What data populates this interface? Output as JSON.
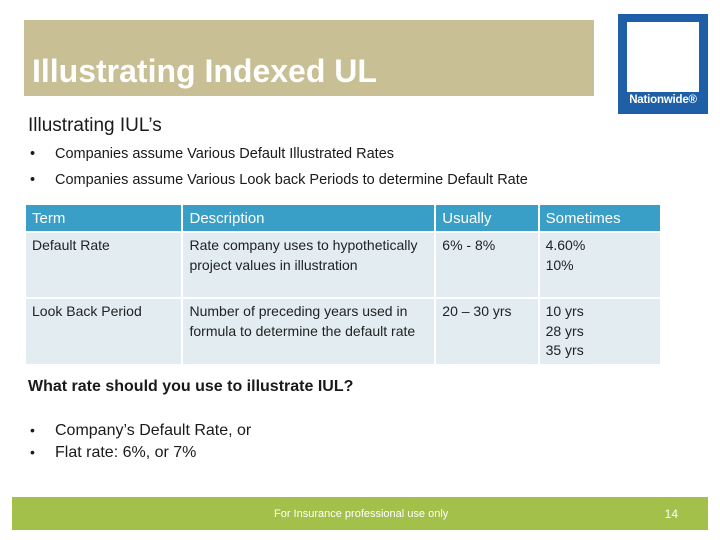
{
  "slide": {
    "title": "Illustrating Indexed UL",
    "logo_text": "Nationwide®",
    "subtitle": "Illustrating IUL’s",
    "bullets": [
      "Companies assume Various Default Illustrated Rates",
      "Companies assume Various Look back Periods to determine Default Rate"
    ],
    "bullet_symbol": "•",
    "table": {
      "headers": [
        "Term",
        "Description",
        "Usually",
        "Sometimes"
      ],
      "rows": [
        {
          "term": "Default Rate",
          "description": "Rate company uses to hypothetically project values in illustration",
          "usually": "6% - 8%",
          "sometimes": [
            "4.60%",
            "10%"
          ]
        },
        {
          "term": "Look Back Period",
          "description": "Number of preceding years used in formula to determine the default rate",
          "usually": "20 – 30 yrs",
          "sometimes": [
            "10 yrs",
            "28 yrs",
            "35 yrs"
          ]
        }
      ]
    },
    "question": "What rate should you use to illustrate IUL?",
    "answers": [
      "Company’s Default Rate, or",
      "Flat rate:  6%, or 7%"
    ],
    "footer_text": "For Insurance professional use only",
    "page_number": "14"
  },
  "colors": {
    "title_bar": "#c8bf95",
    "logo_blue": "#1f5fa8",
    "table_header": "#3a9fc7",
    "table_cell": "#e2ecf1",
    "footer_green": "#a3c14a"
  },
  "icons": {
    "logo": "nationwide-logo"
  }
}
